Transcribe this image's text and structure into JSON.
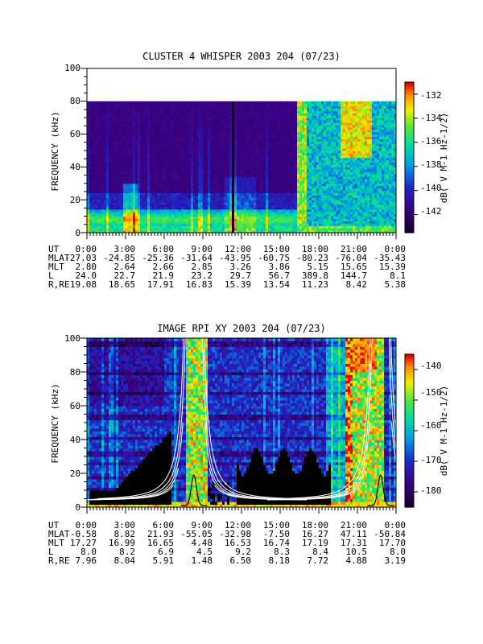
{
  "chart_data": [
    {
      "type": "heatmap",
      "title": "CLUSTER 4 WHISPER 2003 204 (07/23)",
      "ylabel": "FREQUENCY (kHz)",
      "ylim": [
        0,
        100
      ],
      "yticks": [
        "0",
        "20",
        "40",
        "60",
        "80",
        "100"
      ],
      "data_top_khz": 80,
      "xlim_hours": [
        0,
        24
      ],
      "colorbar": {
        "label": "dB( V M-1 Hz-1/2)",
        "ticks": [
          "-132",
          "-134",
          "-136",
          "-138",
          "-140",
          "-142"
        ],
        "tick_values": [
          -132,
          -134,
          -136,
          -138,
          -140,
          -142
        ],
        "range": [
          -143.5,
          -131
        ]
      },
      "ephemeris": {
        "labels": [
          "UT",
          "MLAT",
          "MLT",
          "L",
          "R,RE"
        ],
        "rows": [
          [
            "0:00",
            "3:00",
            "6:00",
            "9:00",
            "12:00",
            "15:00",
            "18:00",
            "21:00",
            "0:00"
          ],
          [
            "-27.03",
            "-24.85",
            "-25.36",
            "-31.64",
            "-43.95",
            "-60.75",
            "-80.23",
            "-76.04",
            "-35.43"
          ],
          [
            "2.80",
            "2.64",
            "2.66",
            "2.85",
            "3.26",
            "3.86",
            "5.15",
            "15.65",
            "15.39"
          ],
          [
            "24.0",
            "22.7",
            "21.9",
            "23.2",
            "29.7",
            "56.7",
            "389.8",
            "144.7",
            "8.1"
          ],
          [
            "19.08",
            "18.65",
            "17.91",
            "16.83",
            "15.39",
            "13.54",
            "11.23",
            "8.42",
            "5.38"
          ]
        ]
      }
    },
    {
      "type": "heatmap",
      "title": "IMAGE RPI XY 2003 204 (07/23)",
      "ylabel": "FREQUENCY (kHz)",
      "ylim": [
        0,
        100
      ],
      "yticks": [
        "0",
        "20",
        "40",
        "60",
        "80",
        "100"
      ],
      "xlim_hours": [
        0,
        24
      ],
      "colorbar": {
        "label": "dB( V M-1 Hz-1/2)",
        "ticks": [
          "-140",
          "-150",
          "-160",
          "-170",
          "-180"
        ],
        "tick_values": [
          -140,
          -150,
          -160,
          -170,
          -180
        ],
        "range": [
          -185,
          -135
        ]
      },
      "ephemeris": {
        "labels": [
          "UT",
          "MLAT",
          "MLT",
          "L",
          "R,RE"
        ],
        "rows": [
          [
            "0:00",
            "3:00",
            "6:00",
            "9:00",
            "12:00",
            "15:00",
            "18:00",
            "21:00",
            "0:00"
          ],
          [
            "-0.58",
            "8.82",
            "21.93",
            "-55.05",
            "-32.98",
            "-7.50",
            "16.27",
            "47.11",
            "-50.84"
          ],
          [
            "17.27",
            "16.99",
            "16.65",
            "4.48",
            "16.53",
            "16.74",
            "17.19",
            "17.31",
            "17.70"
          ],
          [
            "8.0",
            "8.2",
            "6.9",
            "4.5",
            "9.2",
            "8.3",
            "8.4",
            "10.5",
            "8.0"
          ],
          [
            "7.96",
            "8.04",
            "5.91",
            "1.48",
            "6.50",
            "8.18",
            "7.72",
            "4.88",
            "3.19"
          ]
        ]
      }
    }
  ]
}
